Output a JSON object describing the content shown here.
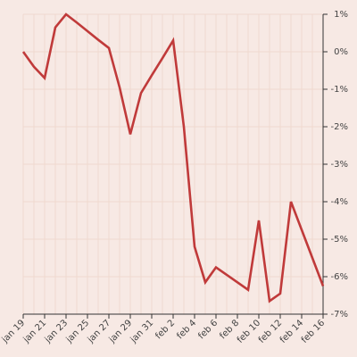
{
  "chart_data": {
    "type": "line",
    "title": "",
    "xlabel": "",
    "ylabel": "",
    "x": [
      "2024-01-19",
      "2024-01-20",
      "2024-01-21",
      "2024-01-22",
      "2024-01-23",
      "2024-01-24",
      "2024-01-25",
      "2024-01-26",
      "2024-01-27",
      "2024-01-28",
      "2024-01-29",
      "2024-01-30",
      "2024-01-31",
      "2024-02-01",
      "2024-02-02",
      "2024-02-03",
      "2024-02-04",
      "2024-02-05",
      "2024-02-06",
      "2024-02-07",
      "2024-02-08",
      "2024-02-09",
      "2024-02-10",
      "2024-02-11",
      "2024-02-12",
      "2024-02-13",
      "2024-02-14",
      "2024-02-15",
      "2024-02-16"
    ],
    "series": [
      {
        "color": "#c03a3a",
        "values": [
          0.0,
          -0.4,
          -0.7,
          0.65,
          1.0,
          0.78,
          0.55,
          0.32,
          0.1,
          -0.95,
          -2.2,
          -1.1,
          -0.63,
          -0.17,
          0.3,
          -2.0,
          -5.2,
          -6.15,
          -5.75,
          -5.95,
          -6.15,
          -6.35,
          -4.5,
          -6.65,
          -6.45,
          -4.0,
          -4.75,
          -5.5,
          -6.25
        ]
      }
    ],
    "x_tick_labels": [
      "jan 19",
      "jan 21",
      "jan 23",
      "jan 25",
      "jan 27",
      "jan 29",
      "jan 31",
      "feb 2",
      "feb 4",
      "feb 6",
      "feb 8",
      "feb 10",
      "feb 12",
      "feb 14",
      "feb 16"
    ],
    "y_ticks": [
      1,
      0,
      -1,
      -2,
      -3,
      -4,
      -5,
      -6,
      -7
    ],
    "y_tick_labels": [
      "1%",
      "0%",
      "-1%",
      "-2%",
      "-3%",
      "-4%",
      "-5%",
      "-6%",
      "-7%"
    ],
    "ylim": [
      -7,
      1
    ],
    "grid": true,
    "y_axis_position": "right"
  }
}
